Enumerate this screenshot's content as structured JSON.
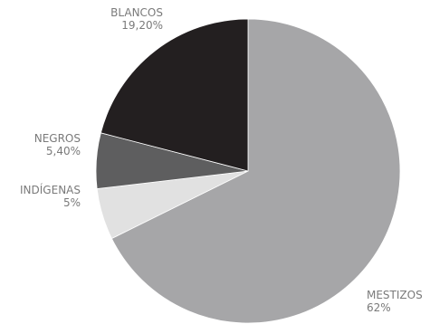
{
  "chart_data": {
    "type": "pie",
    "start_angle_deg": 0,
    "direction": "clockwise",
    "slices": [
      {
        "label": "MESTIZOS",
        "value": 62,
        "value_label": "62%",
        "color": "#a6a6a8"
      },
      {
        "label": "INDÍGENAS",
        "value": 5,
        "value_label": "5%",
        "color": "#e1e1e1"
      },
      {
        "label": "NEGROS",
        "value": 5.4,
        "value_label": "5,40%",
        "color": "#5e5e5f"
      },
      {
        "label": "BLANCOS",
        "value": 19.2,
        "value_label": "19,20%",
        "color": "#231f20"
      }
    ],
    "label_color": "#7a7a7a"
  }
}
